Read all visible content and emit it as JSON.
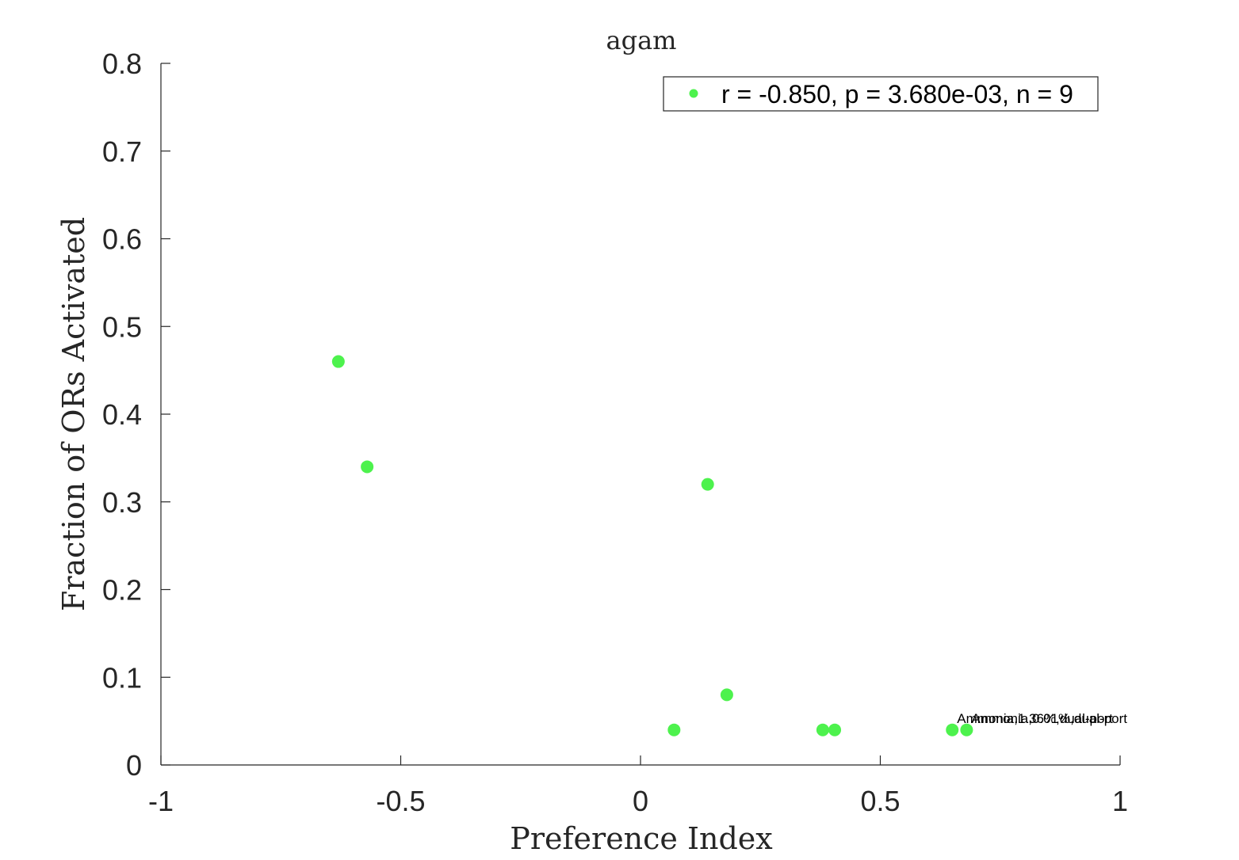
{
  "chart_data": {
    "type": "scatter",
    "title": "agam",
    "xlabel": "Preference Index",
    "ylabel": "Fraction of ORs Activated",
    "xlim": [
      -1,
      1
    ],
    "ylim": [
      0,
      0.8
    ],
    "x_ticks": [
      -1,
      -0.5,
      0,
      0.5,
      1
    ],
    "x_tick_labels": [
      "-1",
      "-0.5",
      "0",
      "0.5",
      "1"
    ],
    "y_ticks": [
      0,
      0.1,
      0.2,
      0.3,
      0.4,
      0.5,
      0.6,
      0.7,
      0.8
    ],
    "y_tick_labels": [
      "0",
      "0.1",
      "0.2",
      "0.3",
      "0.4",
      "0.5",
      "0.6",
      "0.7",
      "0.8"
    ],
    "grid": false,
    "legend_position": "top-right",
    "color": "#4df24d",
    "series": [
      {
        "name": "r = -0.850, p = 3.680e-03, n = 9",
        "points": [
          {
            "x": -0.63,
            "y": 0.46
          },
          {
            "x": -0.57,
            "y": 0.34
          },
          {
            "x": 0.14,
            "y": 0.32
          },
          {
            "x": 0.18,
            "y": 0.08
          },
          {
            "x": 0.07,
            "y": 0.04
          },
          {
            "x": 0.38,
            "y": 0.04
          },
          {
            "x": 0.405,
            "y": 0.04
          },
          {
            "x": 0.65,
            "y": 0.04
          },
          {
            "x": 0.68,
            "y": 0.04
          }
        ]
      }
    ],
    "annotations": [
      {
        "text": "Ammonia,1.36%,dual-port",
        "x": 0.66,
        "y": 0.048
      },
      {
        "text": "Ammonia,0.01%,dual-port",
        "x": 0.69,
        "y": 0.048
      }
    ]
  }
}
